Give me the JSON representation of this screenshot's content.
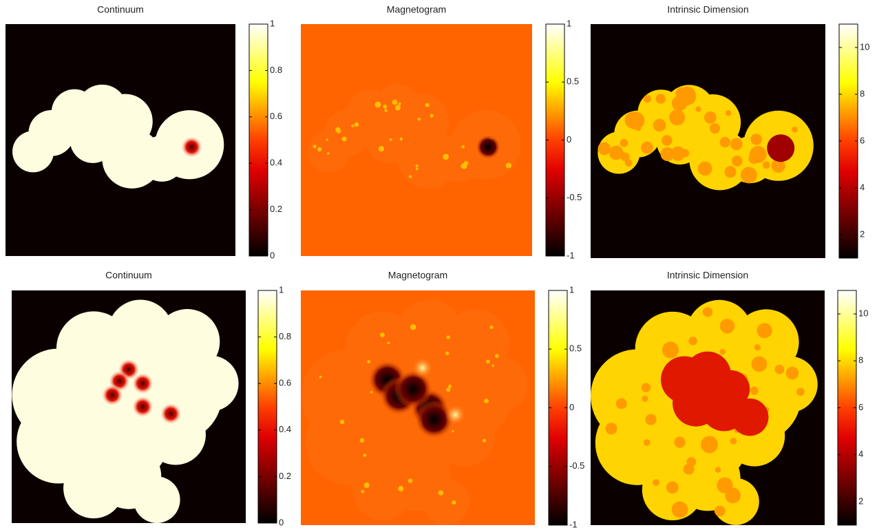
{
  "chart_data": [
    {
      "type": "heatmap",
      "title": "Continuum",
      "clim": [
        0,
        1
      ],
      "cticks": [
        0,
        0.2,
        0.4,
        0.6,
        0.8,
        1
      ]
    },
    {
      "type": "heatmap",
      "title": "Magnetogram",
      "clim": [
        -1,
        1
      ],
      "cticks": [
        -1,
        -0.5,
        0,
        0.5,
        1
      ]
    },
    {
      "type": "heatmap",
      "title": "Intrinsic Dimension",
      "clim": [
        1,
        11
      ],
      "cticks": [
        2,
        4,
        6,
        8,
        10
      ]
    },
    {
      "type": "heatmap",
      "title": "Continuum",
      "clim": [
        0,
        1
      ],
      "cticks": [
        0,
        0.2,
        0.4,
        0.6,
        0.8,
        1
      ]
    },
    {
      "type": "heatmap",
      "title": "Magnetogram",
      "clim": [
        -1,
        1
      ],
      "cticks": [
        -1,
        -0.5,
        0,
        0.5,
        1
      ]
    },
    {
      "type": "heatmap",
      "title": "Intrinsic Dimension",
      "clim": [
        1,
        11
      ],
      "cticks": [
        2,
        4,
        6,
        8,
        10
      ]
    }
  ]
}
